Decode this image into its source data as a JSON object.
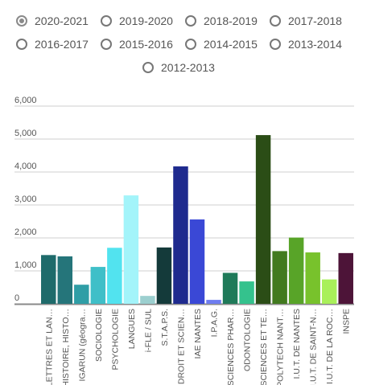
{
  "years": [
    {
      "label": "2020-2021",
      "selected": true
    },
    {
      "label": "2019-2020",
      "selected": false
    },
    {
      "label": "2018-2019",
      "selected": false
    },
    {
      "label": "2017-2018",
      "selected": false
    },
    {
      "label": "2016-2017",
      "selected": false
    },
    {
      "label": "2015-2016",
      "selected": false
    },
    {
      "label": "2014-2015",
      "selected": false
    },
    {
      "label": "2013-2014",
      "selected": false
    },
    {
      "label": "2012-2013",
      "selected": false
    }
  ],
  "chart_data": {
    "type": "bar",
    "title": "",
    "xlabel": "",
    "ylabel": "",
    "ylim": [
      0,
      6000
    ],
    "yticks": [
      0,
      1000,
      2000,
      3000,
      4000,
      5000,
      6000
    ],
    "ytick_labels": [
      "0",
      "1,000",
      "2,000",
      "3,000",
      "4,000",
      "5,000",
      "6,000"
    ],
    "grid": true,
    "categories": [
      "LETTRES ET LAN…",
      "HISTOIRE, HISTO…",
      "IGARUN (géogra…",
      "SOCIOLOGIE",
      "PSYCHOLOGIE",
      "LANGUES",
      "i-FLE / SUL",
      "S.T.A.P.S.",
      "DROIT ET SCIEN…",
      "IAE NANTES",
      "I.P.A.G.",
      "SCIENCES PHAR…",
      "ODONTOLOGIE",
      "SCIENCES ET TE…",
      "POLYTECH NANT…",
      "I.U.T. DE NANTES",
      "I.U.T. DE SAINT-N…",
      "I.U.T. DE LA ROC…",
      "INSPE"
    ],
    "values": [
      1480,
      1440,
      580,
      1120,
      1700,
      3290,
      240,
      1710,
      4170,
      2560,
      120,
      940,
      680,
      5120,
      1600,
      2010,
      1560,
      740,
      1540
    ],
    "colors": [
      "#1e6b6b",
      "#25757a",
      "#2f9ea6",
      "#3fbfc8",
      "#52e3ef",
      "#a3f4fa",
      "#9ccfcf",
      "#143a3a",
      "#1e2a8e",
      "#3a48d6",
      "#6f7df0",
      "#1f7a59",
      "#34c28d",
      "#2b4d16",
      "#427a1f",
      "#58a428",
      "#78c22c",
      "#a9f05a",
      "#4d1438"
    ]
  }
}
